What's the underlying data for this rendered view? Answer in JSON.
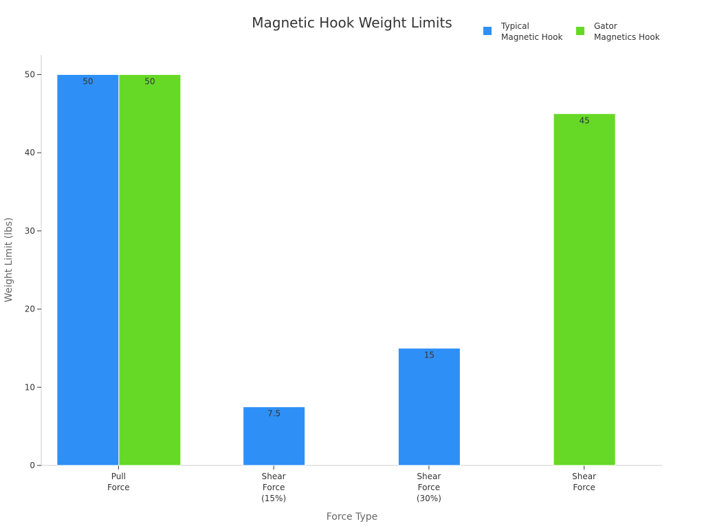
{
  "chart_data": {
    "type": "bar",
    "title": "Magnetic Hook Weight Limits",
    "xlabel": "Force Type",
    "ylabel": "Weight Limit (lbs)",
    "ylim": [
      0,
      52.5
    ],
    "yticks": [
      0,
      10,
      20,
      30,
      40,
      50
    ],
    "grid": false,
    "legend_position": "top-right",
    "categories": [
      [
        "Pull",
        "Force"
      ],
      [
        "Shear",
        "Force",
        "(15%)"
      ],
      [
        "Shear",
        "Force",
        "(30%)"
      ],
      [
        "Shear",
        "Force"
      ]
    ],
    "series": [
      {
        "name": [
          "Typical",
          "Magnetic Hook"
        ],
        "color": "#2e90f7",
        "values": [
          50,
          7.5,
          15,
          null
        ]
      },
      {
        "name": [
          "Gator",
          "Magnetics Hook"
        ],
        "color": "#66d926",
        "values": [
          50,
          null,
          null,
          45
        ]
      }
    ],
    "data_labels": [
      [
        "50",
        "7.5",
        "15",
        null
      ],
      [
        "50",
        null,
        null,
        "45"
      ]
    ]
  }
}
